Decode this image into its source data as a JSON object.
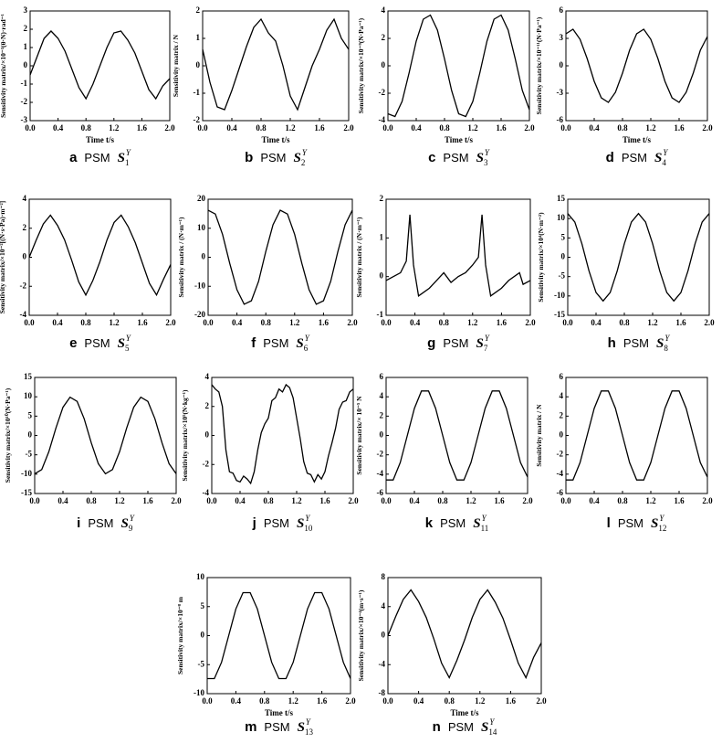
{
  "chart_data": [
    {
      "type": "line",
      "label": "a",
      "prefix": "PSM",
      "symbol": "S",
      "sup": "Y",
      "sub": "1",
      "ylabel": "Sensitivity matrix/×10⁻³(θ·N)·rad⁻¹",
      "xlabel": "Time t/s",
      "color": "#000000",
      "x": [
        0,
        0.1,
        0.2,
        0.3,
        0.4,
        0.5,
        0.6,
        0.7,
        0.8,
        0.9,
        1.0,
        1.1,
        1.2,
        1.3,
        1.4,
        1.5,
        1.6,
        1.7,
        1.8,
        1.9,
        2.0
      ],
      "values": [
        -0.5,
        0.5,
        1.5,
        1.9,
        1.5,
        0.8,
        -0.2,
        -1.2,
        -1.8,
        -1.0,
        0.0,
        1.0,
        1.8,
        1.9,
        1.4,
        0.7,
        -0.3,
        -1.3,
        -1.8,
        -1.1,
        -0.7
      ],
      "xlim": [
        0,
        2
      ],
      "xticks": [
        {
          "value": 0,
          "label": "0.0"
        },
        0.4,
        0.8,
        1.2,
        1.6,
        {
          "value": 2,
          "label": "2.0"
        }
      ],
      "ylim": [
        -3,
        3
      ],
      "yticks": [
        -3,
        -2,
        -1,
        0,
        1,
        2,
        3
      ]
    },
    {
      "type": "line",
      "label": "b",
      "prefix": "PSM",
      "symbol": "S",
      "sup": "Y",
      "sub": "2",
      "ylabel": "Sensitivity matrix / N",
      "xlabel": "Time t/s",
      "color": "#000000",
      "x": [
        0,
        0.1,
        0.2,
        0.3,
        0.4,
        0.5,
        0.6,
        0.7,
        0.8,
        0.9,
        1.0,
        1.1,
        1.2,
        1.3,
        1.4,
        1.5,
        1.6,
        1.7,
        1.8,
        1.9,
        2.0
      ],
      "values": [
        0.6,
        -0.6,
        -1.5,
        -1.6,
        -0.9,
        -0.1,
        0.7,
        1.4,
        1.7,
        1.2,
        0.9,
        0.0,
        -1.1,
        -1.6,
        -0.8,
        0.0,
        0.6,
        1.3,
        1.7,
        1.0,
        0.6
      ],
      "xlim": [
        0,
        2
      ],
      "xticks": [
        {
          "value": 0,
          "label": "0.0"
        },
        0.4,
        0.8,
        1.2,
        1.6,
        {
          "value": 2,
          "label": "2.0"
        }
      ],
      "ylim": [
        -2,
        2
      ],
      "yticks": [
        -2,
        -1,
        0,
        1,
        2
      ]
    },
    {
      "type": "line",
      "label": "c",
      "prefix": "PSM",
      "symbol": "S",
      "sup": "Y",
      "sub": "3",
      "ylabel": "Sensitivity matrix/×10⁻⁹(N·Pa⁻¹)",
      "xlabel": "Time t/s",
      "color": "#000000",
      "x": [
        0,
        0.1,
        0.2,
        0.3,
        0.4,
        0.5,
        0.6,
        0.7,
        0.8,
        0.9,
        1.0,
        1.1,
        1.2,
        1.3,
        1.4,
        1.5,
        1.6,
        1.7,
        1.8,
        1.9,
        2.0
      ],
      "values": [
        -3.5,
        -3.7,
        -2.6,
        -0.5,
        1.8,
        3.4,
        3.7,
        2.6,
        0.5,
        -1.8,
        -3.5,
        -3.7,
        -2.6,
        -0.5,
        1.8,
        3.4,
        3.7,
        2.6,
        0.5,
        -1.8,
        -3.2
      ],
      "xlim": [
        0,
        2
      ],
      "xticks": [
        {
          "value": 0,
          "label": "0.0"
        },
        0.4,
        0.8,
        1.2,
        1.6,
        {
          "value": 2,
          "label": "2.0"
        }
      ],
      "ylim": [
        -4,
        4
      ],
      "yticks": [
        -4,
        -2,
        0,
        2,
        4
      ]
    },
    {
      "type": "line",
      "label": "d",
      "prefix": "PSM",
      "symbol": "S",
      "sup": "Y",
      "sub": "4",
      "ylabel": "Sensitivity matrix/×10⁻¹¹(N·Pa⁻¹)",
      "xlabel": "Time t/s",
      "color": "#000000",
      "x": [
        0,
        0.1,
        0.2,
        0.3,
        0.4,
        0.5,
        0.6,
        0.7,
        0.8,
        0.9,
        1.0,
        1.1,
        1.2,
        1.3,
        1.4,
        1.5,
        1.6,
        1.7,
        1.8,
        1.9,
        2.0
      ],
      "values": [
        3.5,
        4.0,
        2.9,
        0.8,
        -1.7,
        -3.5,
        -4.0,
        -2.9,
        -0.8,
        1.7,
        3.5,
        4.0,
        2.9,
        0.8,
        -1.7,
        -3.5,
        -4.0,
        -2.9,
        -0.8,
        1.7,
        3.2
      ],
      "xlim": [
        0,
        2
      ],
      "xticks": [
        {
          "value": 0,
          "label": "0.0"
        },
        0.4,
        0.8,
        1.2,
        1.6,
        {
          "value": 2,
          "label": "2.0"
        }
      ],
      "ylim": [
        -6,
        6
      ],
      "yticks": [
        -6,
        -3,
        0,
        3,
        6
      ]
    },
    {
      "type": "line",
      "label": "e",
      "prefix": "PSM",
      "symbol": "S",
      "sup": "Y",
      "sub": "5",
      "ylabel": "Sensitivity matrix/×10⁻²[(N·s·Pa)·m⁻²]",
      "color": "#000000",
      "x": [
        0,
        0.1,
        0.2,
        0.3,
        0.4,
        0.5,
        0.6,
        0.7,
        0.8,
        0.9,
        1.0,
        1.1,
        1.2,
        1.3,
        1.4,
        1.5,
        1.6,
        1.7,
        1.8,
        1.9,
        2.0
      ],
      "values": [
        0,
        1.2,
        2.3,
        2.9,
        2.2,
        1.2,
        -0.2,
        -1.7,
        -2.6,
        -1.6,
        -0.3,
        1.2,
        2.4,
        2.9,
        2.1,
        1.0,
        -0.4,
        -1.8,
        -2.6,
        -1.5,
        -0.5
      ],
      "xlim": [
        0,
        2
      ],
      "xticks": [
        {
          "value": 0,
          "label": "0.0"
        },
        0.4,
        0.8,
        1.2,
        1.6,
        {
          "value": 2,
          "label": "2.0"
        }
      ],
      "ylim": [
        -4,
        4
      ],
      "yticks": [
        -4,
        -2,
        0,
        2,
        4
      ]
    },
    {
      "type": "line",
      "label": "f",
      "prefix": "PSM",
      "symbol": "S",
      "sup": "Y",
      "sub": "6",
      "ylabel": "Sensitivity matrix / (N·m⁻¹)",
      "color": "#000000",
      "x": [
        0,
        0.1,
        0.2,
        0.3,
        0.4,
        0.5,
        0.6,
        0.7,
        0.8,
        0.9,
        1.0,
        1.1,
        1.2,
        1.3,
        1.4,
        1.5,
        1.6,
        1.7,
        1.8,
        1.9,
        2.0
      ],
      "values": [
        16.2,
        14.9,
        7.9,
        -2.1,
        -11.2,
        -16.2,
        -15.0,
        -8.3,
        2.0,
        11.2,
        16.2,
        14.9,
        7.9,
        -2.1,
        -11.2,
        -16.2,
        -15.0,
        -8.3,
        2.0,
        11.2,
        16.2
      ],
      "xlim": [
        0,
        2
      ],
      "xticks": [
        {
          "value": 0,
          "label": "0.0"
        },
        0.4,
        0.8,
        1.2,
        1.6,
        {
          "value": 2,
          "label": "2.0"
        }
      ],
      "ylim": [
        -20,
        20
      ],
      "yticks": [
        -20,
        -10,
        0,
        10,
        20
      ]
    },
    {
      "type": "line",
      "label": "g",
      "prefix": "PSM",
      "symbol": "S",
      "sup": "Y",
      "sub": "7",
      "ylabel": "Sensitivity matrix / (N·m⁻¹)",
      "color": "#000000",
      "x": [
        0,
        0.1,
        0.2,
        0.28,
        0.33,
        0.38,
        0.45,
        0.6,
        0.7,
        0.8,
        0.9,
        1.0,
        1.1,
        1.2,
        1.28,
        1.33,
        1.38,
        1.45,
        1.6,
        1.7,
        1.85,
        1.9,
        2.0
      ],
      "values": [
        -0.1,
        0.0,
        0.1,
        0.4,
        1.6,
        0.3,
        -0.5,
        -0.3,
        -0.1,
        0.1,
        -0.15,
        0.0,
        0.1,
        0.3,
        0.5,
        1.6,
        0.3,
        -0.5,
        -0.3,
        -0.1,
        0.1,
        -0.2,
        -0.1
      ],
      "xlim": [
        0,
        2
      ],
      "xticks": [
        {
          "value": 0,
          "label": "0.0"
        },
        0.4,
        0.8,
        1.2,
        1.6,
        {
          "value": 2,
          "label": "2.0"
        }
      ],
      "ylim": [
        -1,
        2
      ],
      "yticks": [
        -1,
        0,
        1,
        2
      ]
    },
    {
      "type": "line",
      "label": "h",
      "prefix": "PSM",
      "symbol": "S",
      "sup": "Y",
      "sub": "8",
      "ylabel": "Sensitivity matrix/×10⁴(N·m⁻²)",
      "color": "#000000",
      "x": [
        0,
        0.1,
        0.2,
        0.3,
        0.4,
        0.5,
        0.6,
        0.7,
        0.8,
        0.9,
        1.0,
        1.1,
        1.2,
        1.3,
        1.4,
        1.5,
        1.6,
        1.7,
        1.8,
        1.9,
        2.0
      ],
      "values": [
        11.3,
        9.1,
        3.5,
        -3.5,
        -9.1,
        -11.3,
        -9.1,
        -3.5,
        3.5,
        9.1,
        11.3,
        9.1,
        3.5,
        -3.5,
        -9.1,
        -11.3,
        -9.1,
        -3.5,
        3.5,
        9.1,
        11.3
      ],
      "xlim": [
        0,
        2
      ],
      "xticks": [
        {
          "value": 0,
          "label": "0.0"
        },
        0.4,
        0.8,
        1.2,
        1.6,
        {
          "value": 2,
          "label": "2.0"
        }
      ],
      "ylim": [
        -15,
        15
      ],
      "yticks": [
        -15,
        -10,
        -5,
        0,
        5,
        10,
        15
      ]
    },
    {
      "type": "line",
      "label": "i",
      "prefix": "PSM",
      "symbol": "S",
      "sup": "Y",
      "sub": "9",
      "ylabel": "Sensitivity matrix/×10¹⁰(N·Pa⁻¹)",
      "color": "#000000",
      "x": [
        0,
        0.1,
        0.2,
        0.3,
        0.4,
        0.5,
        0.6,
        0.7,
        0.8,
        0.9,
        1.0,
        1.1,
        1.2,
        1.3,
        1.4,
        1.5,
        1.6,
        1.7,
        1.8,
        1.9,
        2.0
      ],
      "values": [
        -9.9,
        -8.8,
        -4.2,
        1.9,
        7.3,
        9.9,
        8.8,
        4.3,
        -1.9,
        -7.3,
        -9.9,
        -8.8,
        -4.2,
        1.9,
        7.3,
        9.9,
        8.8,
        4.3,
        -1.9,
        -7.3,
        -9.9
      ],
      "xlim": [
        0,
        2
      ],
      "xticks": [
        {
          "value": 0,
          "label": "0.0"
        },
        0.4,
        0.8,
        1.2,
        1.6,
        {
          "value": 2,
          "label": "2.0"
        }
      ],
      "ylim": [
        -15,
        15
      ],
      "yticks": [
        -15,
        -10,
        -5,
        0,
        5,
        10,
        15
      ]
    },
    {
      "type": "line",
      "label": "j",
      "prefix": "PSM",
      "symbol": "S",
      "sup": "Y",
      "sub": "10",
      "ylabel": "Sensitivity matrix/×10⁵(N·kg⁻¹)",
      "color": "#000000",
      "x": [
        0,
        0.05,
        0.1,
        0.15,
        0.2,
        0.25,
        0.3,
        0.35,
        0.4,
        0.45,
        0.5,
        0.55,
        0.6,
        0.65,
        0.7,
        0.75,
        0.8,
        0.85,
        0.9,
        0.95,
        1.0,
        1.05,
        1.1,
        1.15,
        1.2,
        1.25,
        1.3,
        1.35,
        1.4,
        1.45,
        1.5,
        1.55,
        1.6,
        1.65,
        1.7,
        1.75,
        1.8,
        1.85,
        1.9,
        1.95,
        2.0
      ],
      "values": [
        3.5,
        3.2,
        3.0,
        2.0,
        -1.0,
        -2.5,
        -2.6,
        -3.1,
        -3.2,
        -2.8,
        -3.0,
        -3.3,
        -2.5,
        -1.0,
        0.2,
        0.8,
        1.2,
        2.4,
        2.6,
        3.2,
        3.0,
        3.5,
        3.3,
        2.6,
        1.2,
        -0.2,
        -1.8,
        -2.6,
        -2.7,
        -3.2,
        -2.7,
        -3.0,
        -2.5,
        -1.4,
        -0.5,
        0.5,
        1.8,
        2.3,
        2.4,
        3.0,
        3.2
      ],
      "xlim": [
        0,
        2
      ],
      "xticks": [
        {
          "value": 0,
          "label": "0.0"
        },
        0.4,
        0.8,
        1.2,
        1.6,
        {
          "value": 2,
          "label": "2.0"
        }
      ],
      "ylim": [
        -4,
        4
      ],
      "yticks": [
        -4,
        -2,
        0,
        2,
        4
      ]
    },
    {
      "type": "line",
      "label": "k",
      "prefix": "PSM",
      "symbol": "S",
      "sup": "Y",
      "sub": "11",
      "ylabel": "Sensitivity matrix/× 10⁻⁵ N",
      "color": "#000000",
      "x": [
        0,
        0.1,
        0.2,
        0.3,
        0.4,
        0.5,
        0.6,
        0.7,
        0.8,
        0.9,
        1.0,
        1.1,
        1.2,
        1.3,
        1.4,
        1.5,
        1.6,
        1.7,
        1.8,
        1.9,
        2.0
      ],
      "values": [
        -4.6,
        -4.6,
        -2.8,
        0,
        2.8,
        4.6,
        4.6,
        2.8,
        0,
        -2.8,
        -4.6,
        -4.6,
        -2.8,
        0,
        2.8,
        4.6,
        4.6,
        2.8,
        0,
        -2.8,
        -4.3
      ],
      "xlim": [
        0,
        2
      ],
      "xticks": [
        {
          "value": 0,
          "label": "0.0"
        },
        0.4,
        0.8,
        1.2,
        1.6,
        {
          "value": 2,
          "label": "2.0"
        }
      ],
      "ylim": [
        -6,
        6
      ],
      "yticks": [
        -6,
        -4,
        -2,
        0,
        2,
        4,
        6
      ]
    },
    {
      "type": "line",
      "label": "l",
      "prefix": "PSM",
      "symbol": "S",
      "sup": "Y",
      "sub": "12",
      "ylabel": "Sensitivity matrix / N",
      "color": "#000000",
      "x": [
        0,
        0.1,
        0.2,
        0.3,
        0.4,
        0.5,
        0.6,
        0.7,
        0.8,
        0.9,
        1.0,
        1.1,
        1.2,
        1.3,
        1.4,
        1.5,
        1.6,
        1.7,
        1.8,
        1.9,
        2.0
      ],
      "values": [
        -4.6,
        -4.6,
        -2.8,
        0,
        2.8,
        4.6,
        4.6,
        2.8,
        0,
        -2.8,
        -4.6,
        -4.6,
        -2.8,
        0,
        2.8,
        4.6,
        4.6,
        2.8,
        0,
        -2.8,
        -4.3
      ],
      "xlim": [
        0,
        2
      ],
      "xticks": [
        {
          "value": 0,
          "label": "0.0"
        },
        0.4,
        0.8,
        1.2,
        1.6,
        {
          "value": 2,
          "label": "2.0"
        }
      ],
      "ylim": [
        -6,
        6
      ],
      "yticks": [
        -6,
        -4,
        -2,
        0,
        2,
        4,
        6
      ]
    },
    {
      "type": "line",
      "label": "m",
      "prefix": "PSM",
      "symbol": "S",
      "sup": "Y",
      "sub": "13",
      "ylabel": "Sensitivity matrix/×10⁻⁸ m",
      "xlabel": "Time t/s",
      "color": "#000000",
      "x": [
        0,
        0.1,
        0.2,
        0.3,
        0.4,
        0.5,
        0.6,
        0.7,
        0.8,
        0.9,
        1.0,
        1.1,
        1.2,
        1.3,
        1.4,
        1.5,
        1.6,
        1.7,
        1.8,
        1.9,
        2.0
      ],
      "values": [
        -7.4,
        -7.4,
        -4.6,
        0,
        4.6,
        7.4,
        7.4,
        4.6,
        0,
        -4.6,
        -7.4,
        -7.4,
        -4.6,
        0,
        4.6,
        7.4,
        7.4,
        4.6,
        0,
        -4.6,
        -7.4
      ],
      "xlim": [
        0,
        2
      ],
      "xticks": [
        {
          "value": 0,
          "label": "0.0"
        },
        0.4,
        0.8,
        1.2,
        1.6,
        {
          "value": 2,
          "label": "2.0"
        }
      ],
      "ylim": [
        -10,
        10
      ],
      "yticks": [
        -10,
        -5,
        0,
        5,
        10
      ]
    },
    {
      "type": "line",
      "label": "n",
      "prefix": "PSM",
      "symbol": "S",
      "sup": "Y",
      "sub": "14",
      "ylabel": "Sensitivity matrix/×10⁻⁴(m·s⁻¹)",
      "xlabel": "Time t/s",
      "color": "#000000",
      "x": [
        0,
        0.1,
        0.2,
        0.3,
        0.4,
        0.5,
        0.6,
        0.7,
        0.8,
        0.9,
        1.0,
        1.1,
        1.2,
        1.3,
        1.4,
        1.5,
        1.6,
        1.7,
        1.8,
        1.9,
        2.0
      ],
      "values": [
        0,
        2.6,
        5.0,
        6.3,
        4.7,
        2.5,
        -0.5,
        -3.8,
        -5.8,
        -3.4,
        -0.6,
        2.5,
        5.0,
        6.3,
        4.6,
        2.4,
        -0.6,
        -3.8,
        -5.8,
        -3.0,
        -1.0
      ],
      "xlim": [
        0,
        2
      ],
      "xticks": [
        {
          "value": 0,
          "label": "0.0"
        },
        0.4,
        0.8,
        1.2,
        1.6,
        {
          "value": 2,
          "label": "2.0"
        }
      ],
      "ylim": [
        -8,
        8
      ],
      "yticks": [
        -8,
        -4,
        0,
        4,
        8
      ]
    }
  ]
}
